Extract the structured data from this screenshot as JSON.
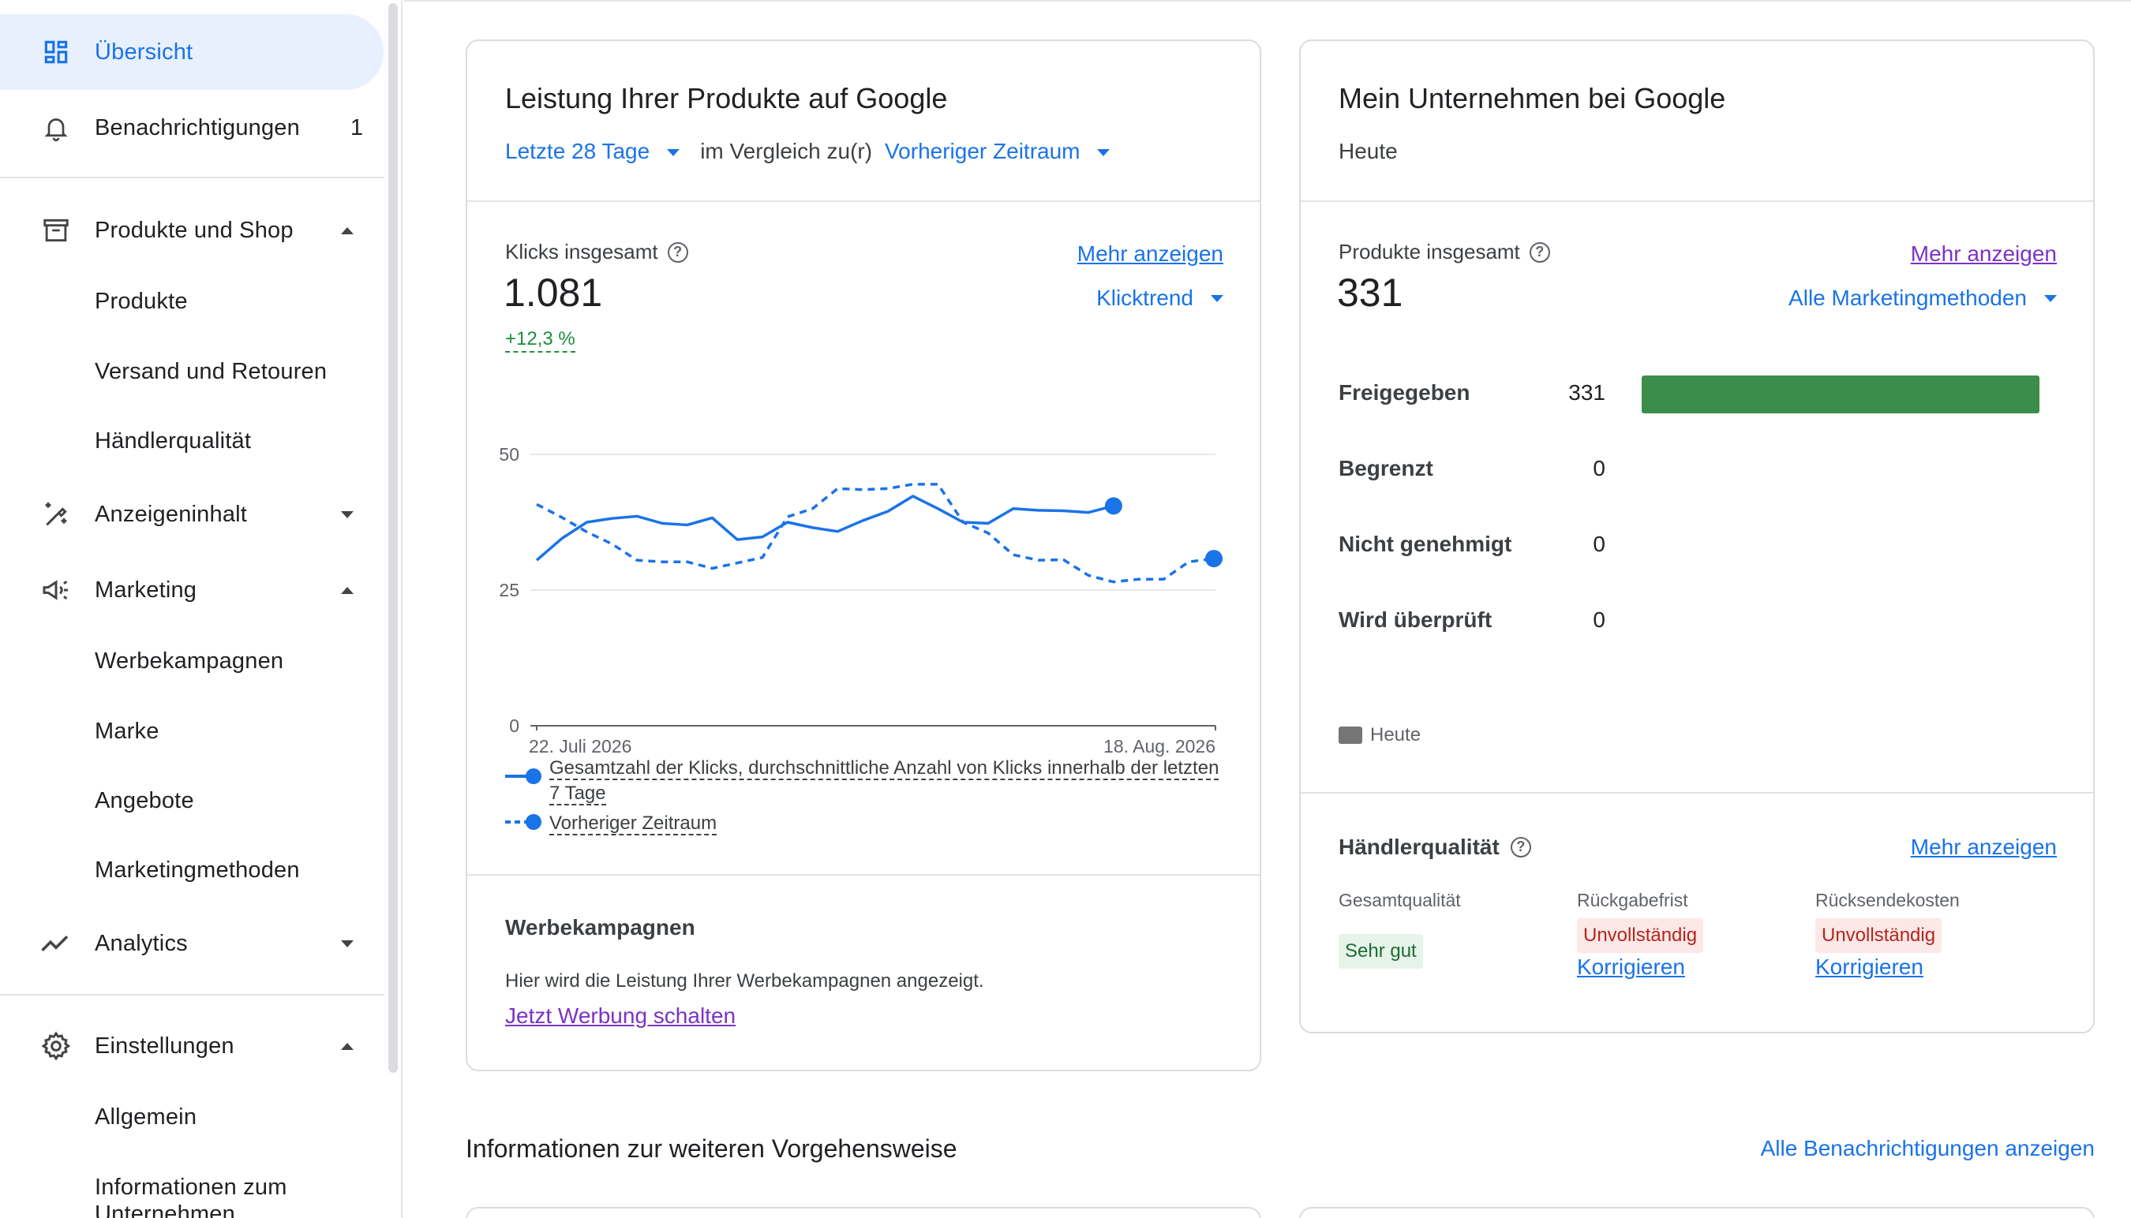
{
  "sidebar": {
    "overview": "Übersicht",
    "notifications": "Benachrichtigungen",
    "notifications_count": "1",
    "products_shop": "Produkte und Shop",
    "products": "Produkte",
    "shipping": "Versand und Retouren",
    "merchant_quality": "Händlerqualität",
    "ad_content": "Anzeigeninhalt",
    "marketing": "Marketing",
    "campaigns": "Werbekampagnen",
    "brand": "Marke",
    "offers": "Angebote",
    "marketing_methods": "Marketingmethoden",
    "analytics": "Analytics",
    "settings": "Einstellungen",
    "general": "Allgemein",
    "business_info": "Informationen zum Unternehmen"
  },
  "performance": {
    "title": "Leistung Ihrer Produkte auf Google",
    "range": "Letzte 28 Tage",
    "compare_text": "im Vergleich zu(r)",
    "compare_range": "Vorheriger Zeitraum",
    "metric_label": "Klicks insgesamt",
    "more_link": "Mehr anzeigen",
    "metric_value": "1.081",
    "change": "+12,3 %",
    "trend_dropdown": "Klicktrend",
    "legend_current": "Gesamtzahl der Klicks, durchschnittliche Anzahl von Klicks innerhalb der letzten 7 Tage",
    "legend_previous": "Vorheriger Zeitraum",
    "campaigns_title": "Werbekampagnen",
    "campaigns_text": "Hier wird die Leistung Ihrer Werbekampagnen angezeigt.",
    "campaigns_link": "Jetzt Werbung schalten"
  },
  "chart_data": {
    "type": "line",
    "x_start": "22. Juli 2026",
    "x_end": "18. Aug. 2026",
    "yticks": [
      "0",
      "25",
      "50"
    ],
    "ylim": [
      0,
      50
    ],
    "series": [
      {
        "name": "Gesamtzahl der Klicks, durchschnittliche Anzahl von Klicks innerhalb der letzten 7 Tage",
        "style": "solid",
        "values": [
          30.5,
          34.5,
          37.5,
          38.2,
          38.6,
          37.3,
          37.0,
          38.3,
          34.3,
          34.8,
          37.5,
          36.5,
          35.8,
          37.8,
          39.5,
          42.3,
          40.0,
          37.5,
          37.3,
          40.0,
          39.7,
          39.6,
          39.3,
          40.5
        ],
        "color": "#1a73e8"
      },
      {
        "name": "Vorheriger Zeitraum",
        "style": "dashed",
        "values": [
          40.8,
          38.4,
          35.7,
          33.5,
          30.5,
          30.2,
          30.2,
          29.0,
          30.0,
          31.0,
          38.5,
          40.0,
          43.7,
          43.5,
          43.7,
          44.5,
          44.5,
          37.5,
          35.5,
          31.5,
          30.5,
          30.6,
          27.7,
          26.5,
          27.0,
          27.0,
          30.2,
          30.8
        ],
        "color": "#1a73e8"
      }
    ]
  },
  "business": {
    "title": "Mein Unternehmen bei Google",
    "subtitle": "Heute",
    "products_label": "Produkte insgesamt",
    "more_link": "Mehr anzeigen",
    "products_total": "331",
    "methods_dropdown": "Alle Marketingmethoden",
    "statuses": [
      {
        "label": "Freigegeben",
        "value": "331",
        "fraction": 1.0
      },
      {
        "label": "Begrenzt",
        "value": "0",
        "fraction": 0
      },
      {
        "label": "Nicht genehmigt",
        "value": "0",
        "fraction": 0
      },
      {
        "label": "Wird überprüft",
        "value": "0",
        "fraction": 0
      }
    ],
    "bar_color": "#3c8c4a",
    "legend_today": "Heute",
    "quality_title": "Händlerqualität",
    "quality_more": "Mehr anzeigen",
    "quality_cols": [
      {
        "label": "Gesamtqualität",
        "badge": "Sehr gut",
        "link": ""
      },
      {
        "label": "Rückgabefrist",
        "badge": "Unvollständig",
        "link": "Korrigieren"
      },
      {
        "label": "Rücksendekosten",
        "badge": "Unvollständig",
        "link": "Korrigieren"
      }
    ]
  },
  "next_steps": {
    "title": "Informationen zur weiteren Vorgehensweise",
    "all_link": "Alle Benachrichtigungen anzeigen"
  }
}
